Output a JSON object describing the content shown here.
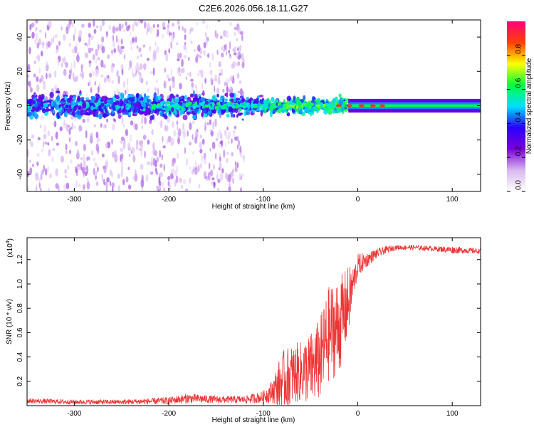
{
  "figure_title": "C2E6.2026.056.18.11.G27",
  "chart_data": [
    {
      "type": "heatmap",
      "title": "C2E6.2026.056.18.11.G27",
      "xlabel": "Height of straight line (km)",
      "ylabel": "Frequency (Hz)",
      "xlim": [
        -350,
        130
      ],
      "ylim": [
        -50,
        50
      ],
      "x_ticks": [
        -300,
        -200,
        -100,
        0,
        100
      ],
      "y_ticks": [
        -40,
        -20,
        0,
        20,
        40
      ],
      "colorbar": {
        "label": "Normalized spectral amplitude",
        "range": [
          0,
          1
        ],
        "ticks": [
          0.0,
          0.2,
          0.4,
          0.6,
          0.8
        ],
        "tick_labels": [
          "0.0",
          "0.2",
          "0.4",
          "0.6",
          "0.8"
        ],
        "colors": [
          "#ffffff",
          "#d8b8f0",
          "#7a00d8",
          "#2a00ff",
          "#00e0ff",
          "#00ff40",
          "#ffff00",
          "#ff4000",
          "#ff0080"
        ]
      },
      "features": [
        {
          "name": "background scatter",
          "x_range": [
            -350,
            -120
          ],
          "freq_range": [
            -50,
            50
          ],
          "amplitude": 0.1
        },
        {
          "name": "noisy band",
          "x_range": [
            -350,
            -10
          ],
          "freq_range": [
            -10,
            10
          ],
          "amplitude": 0.3
        },
        {
          "name": "carrier line",
          "x_range": [
            -10,
            130
          ],
          "freq_center": 0,
          "amplitude": 0.9
        }
      ]
    },
    {
      "type": "line",
      "xlabel": "Height of straight line (km)",
      "ylabel": "SNR (10 * v/v)",
      "y_scale_label": "(x10",
      "y_scale_exponent": "4",
      "y_scale": 10000,
      "xlim": [
        -350,
        130
      ],
      "ylim": [
        0,
        1.38
      ],
      "x_ticks": [
        -300,
        -200,
        -100,
        0,
        100
      ],
      "y_ticks": [
        0.2,
        0.4,
        0.6,
        0.8,
        1.0,
        1.2
      ],
      "y_tick_labels": [
        "0.2",
        "0.4",
        "0.6",
        "0.8",
        "1.0",
        "1.2"
      ],
      "line_color": "#ee3333",
      "series": [
        {
          "name": "SNR",
          "x": [
            -350,
            -300,
            -250,
            -200,
            -180,
            -150,
            -120,
            -100,
            -90,
            -80,
            -70,
            -60,
            -50,
            -40,
            -30,
            -20,
            -15,
            -10,
            -5,
            0,
            10,
            20,
            30,
            40,
            50,
            60,
            80,
            100,
            130
          ],
          "mean": [
            0.04,
            0.03,
            0.03,
            0.04,
            0.06,
            0.05,
            0.05,
            0.07,
            0.12,
            0.2,
            0.25,
            0.28,
            0.3,
            0.38,
            0.6,
            0.65,
            0.75,
            0.85,
            1.0,
            1.15,
            1.2,
            1.25,
            1.28,
            1.3,
            1.3,
            1.3,
            1.29,
            1.28,
            1.27
          ],
          "band": [
            0.02,
            0.02,
            0.02,
            0.03,
            0.04,
            0.03,
            0.03,
            0.05,
            0.1,
            0.25,
            0.25,
            0.25,
            0.3,
            0.35,
            0.4,
            0.4,
            0.35,
            0.3,
            0.15,
            0.1,
            0.06,
            0.04,
            0.03,
            0.02,
            0.02,
            0.02,
            0.02,
            0.03,
            0.02
          ]
        }
      ]
    }
  ]
}
